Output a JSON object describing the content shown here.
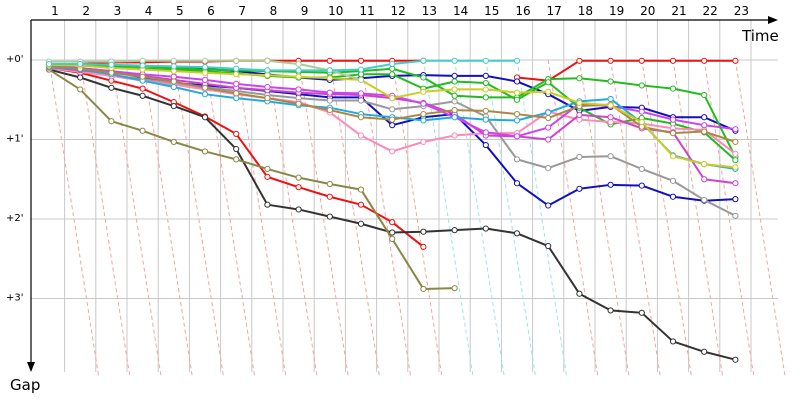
{
  "chart_data": {
    "type": "line",
    "xlabel": "Time",
    "ylabel": "Gap",
    "x_ticks": [
      "1",
      "2",
      "3",
      "4",
      "5",
      "6",
      "7",
      "8",
      "9",
      "10",
      "11",
      "12",
      "13",
      "14",
      "15",
      "16",
      "17",
      "18",
      "19",
      "20",
      "21",
      "22",
      "23"
    ],
    "y_ticks": [
      {
        "value": 0,
        "label": "+0'"
      },
      {
        "value": 1,
        "label": "+1'"
      },
      {
        "value": 2,
        "label": "+2'"
      },
      {
        "value": 3,
        "label": "+3'"
      }
    ],
    "grid": true,
    "colors": {
      "grid": "#c8c8c8",
      "axis": "#000000",
      "lap_guide_red": "#f4a3a3",
      "lap_guide_cyan": "#9fe4e4"
    },
    "series": [
      {
        "color": "#ee1111",
        "y": [
          0.1,
          0.16,
          0.26,
          0.36,
          0.53,
          0.71,
          0.93,
          1.47,
          1.6,
          1.72,
          1.82,
          2.04,
          2.35,
          null,
          null,
          null,
          null,
          null,
          null,
          null,
          null,
          null,
          null
        ]
      },
      {
        "color": "#ee1111",
        "y": [
          0.06,
          0.05,
          0.03,
          0.03,
          0.02,
          0.02,
          0.01,
          0.01,
          0.01,
          0.01,
          0.01,
          0.01,
          0.01,
          null,
          null,
          0.22,
          0.26,
          0.01,
          0.01,
          0.01,
          0.01,
          0.01,
          0.01
        ]
      },
      {
        "color": "#333333",
        "y": [
          0.12,
          0.22,
          0.35,
          0.45,
          0.58,
          0.72,
          1.12,
          1.82,
          1.88,
          1.97,
          2.06,
          2.17,
          2.16,
          2.14,
          2.12,
          2.18,
          2.34,
          2.94,
          3.15,
          3.18,
          3.54,
          3.67,
          3.77
        ]
      },
      {
        "color": "#888844",
        "y": [
          0.12,
          0.37,
          0.77,
          0.89,
          1.03,
          1.15,
          1.25,
          1.37,
          1.48,
          1.56,
          1.63,
          2.25,
          2.88,
          2.87,
          null,
          null,
          null,
          null,
          null,
          null,
          null,
          null,
          null
        ]
      },
      {
        "color": "#1111bb",
        "y": [
          0.08,
          0.11,
          0.14,
          0.22,
          0.29,
          0.32,
          0.35,
          0.39,
          0.43,
          0.47,
          0.47,
          0.82,
          0.72,
          0.68,
          1.07,
          1.55,
          1.83,
          1.62,
          1.57,
          1.58,
          1.72,
          1.77,
          1.75
        ]
      },
      {
        "color": "#1111bb",
        "y": [
          0.06,
          0.06,
          0.07,
          0.08,
          0.09,
          0.11,
          0.14,
          0.18,
          0.22,
          0.25,
          0.23,
          0.2,
          0.19,
          0.2,
          0.2,
          0.27,
          0.43,
          0.64,
          0.59,
          0.6,
          0.72,
          0.72,
          0.89
        ]
      },
      {
        "color": "#22bb22",
        "y": [
          0.06,
          0.06,
          0.07,
          0.08,
          0.1,
          0.12,
          0.13,
          0.14,
          0.15,
          0.16,
          0.14,
          0.11,
          0.22,
          0.45,
          0.47,
          0.47,
          0.24,
          0.23,
          0.27,
          0.32,
          0.36,
          0.44,
          1.22
        ]
      },
      {
        "color": "#22bb22",
        "y": [
          0.06,
          0.07,
          0.09,
          0.11,
          0.12,
          0.14,
          0.17,
          0.2,
          0.22,
          0.22,
          0.18,
          0.18,
          0.36,
          0.27,
          0.29,
          0.5,
          0.28,
          0.6,
          0.81,
          0.73,
          0.8,
          0.91,
          1.26
        ]
      },
      {
        "color": "#999999",
        "y": [
          0.09,
          0.14,
          0.19,
          0.24,
          0.29,
          0.34,
          0.39,
          0.44,
          0.48,
          0.51,
          0.51,
          0.62,
          0.58,
          0.52,
          0.71,
          1.25,
          1.36,
          1.22,
          1.21,
          1.37,
          1.52,
          1.76,
          1.96
        ]
      },
      {
        "color": "#ff88bb",
        "y": [
          0.1,
          0.15,
          0.2,
          0.26,
          0.31,
          0.37,
          0.43,
          0.48,
          0.53,
          0.66,
          0.95,
          1.15,
          1.03,
          0.95,
          0.92,
          0.92,
          0.65,
          0.75,
          0.78,
          0.8,
          0.86,
          0.88,
          1.18
        ]
      },
      {
        "color": "#cc44cc",
        "y": [
          0.09,
          0.13,
          0.16,
          0.2,
          0.25,
          0.3,
          0.35,
          0.38,
          0.41,
          0.43,
          0.44,
          0.48,
          0.54,
          0.68,
          0.95,
          0.96,
          1.0,
          0.69,
          0.72,
          0.86,
          0.91,
          1.5,
          1.55
        ]
      },
      {
        "color": "#cc44ee",
        "y": [
          0.07,
          0.1,
          0.14,
          0.18,
          0.21,
          0.25,
          0.3,
          0.34,
          0.37,
          0.41,
          0.42,
          0.45,
          0.55,
          0.72,
          0.91,
          0.96,
          0.85,
          0.55,
          0.58,
          0.65,
          0.75,
          0.82,
          0.87
        ]
      },
      {
        "color": "#22aadd",
        "y": [
          0.09,
          0.12,
          0.18,
          0.26,
          0.34,
          0.43,
          0.48,
          0.52,
          0.57,
          0.6,
          0.68,
          0.72,
          0.76,
          0.72,
          0.75,
          0.76,
          0.66,
          0.52,
          0.49,
          0.79,
          1.2,
          1.31,
          1.37
        ]
      },
      {
        "color": "#aa8844",
        "y": [
          0.08,
          0.11,
          0.16,
          0.21,
          0.27,
          0.35,
          0.42,
          0.48,
          0.55,
          0.63,
          0.72,
          0.75,
          0.68,
          0.63,
          0.64,
          0.68,
          0.73,
          0.58,
          0.56,
          0.84,
          0.92,
          0.9,
          1.03
        ]
      },
      {
        "color": "#cccc22",
        "y": [
          0.06,
          0.07,
          0.1,
          0.12,
          0.14,
          0.16,
          0.18,
          0.19,
          0.21,
          0.23,
          0.25,
          0.48,
          0.4,
          0.37,
          0.37,
          0.41,
          0.4,
          0.54,
          0.57,
          0.78,
          1.21,
          1.31,
          1.35
        ]
      },
      {
        "color": "#aacc99",
        "y": [
          0.02,
          0.02,
          0.02,
          0.01,
          0.01,
          0.01,
          0.01,
          0.01,
          0.05,
          0.13,
          0.25,
          null,
          null,
          null,
          null,
          null,
          null,
          null,
          null,
          null,
          null,
          null,
          null
        ]
      },
      {
        "color": "#44cccc",
        "y": [
          0.05,
          0.05,
          0.06,
          0.07,
          0.08,
          0.09,
          0.11,
          0.13,
          0.13,
          0.13,
          0.12,
          0.05,
          0.01,
          0.01,
          0.01,
          0.01,
          null,
          null,
          null,
          null,
          null,
          null,
          null
        ]
      }
    ],
    "lap_guides": [
      {
        "color": "#f4a3a3",
        "from": {
          "x": 1,
          "y": 0
        },
        "to": {
          "x": 2.6,
          "y": 4
        }
      },
      {
        "color": "#f4a3a3",
        "from": {
          "x": 2,
          "y": 0
        },
        "to": {
          "x": 3.6,
          "y": 4
        }
      },
      {
        "color": "#f4a3a3",
        "from": {
          "x": 3,
          "y": 0
        },
        "to": {
          "x": 4.6,
          "y": 4
        }
      },
      {
        "color": "#f4a3a3",
        "from": {
          "x": 4,
          "y": 0
        },
        "to": {
          "x": 5.6,
          "y": 4
        }
      },
      {
        "color": "#f4a3a3",
        "from": {
          "x": 5,
          "y": 0
        },
        "to": {
          "x": 6.6,
          "y": 4
        }
      },
      {
        "color": "#f4a3a3",
        "from": {
          "x": 6,
          "y": 0
        },
        "to": {
          "x": 7.6,
          "y": 4
        }
      },
      {
        "color": "#f4a3a3",
        "from": {
          "x": 7,
          "y": 0
        },
        "to": {
          "x": 8.6,
          "y": 4
        }
      },
      {
        "color": "#f4a3a3",
        "from": {
          "x": 8,
          "y": 0
        },
        "to": {
          "x": 9.6,
          "y": 4
        }
      },
      {
        "color": "#f4a3a3",
        "from": {
          "x": 9,
          "y": 0
        },
        "to": {
          "x": 10.6,
          "y": 4
        }
      },
      {
        "color": "#f4a3a3",
        "from": {
          "x": 10,
          "y": 0
        },
        "to": {
          "x": 11.6,
          "y": 4
        }
      },
      {
        "color": "#f4a3a3",
        "from": {
          "x": 11,
          "y": 0
        },
        "to": {
          "x": 12.6,
          "y": 4
        }
      },
      {
        "color": "#f4a3a3",
        "from": {
          "x": 12,
          "y": 0
        },
        "to": {
          "x": 13.6,
          "y": 4
        }
      },
      {
        "color": "#9fe4e4",
        "from": {
          "x": 13,
          "y": 0
        },
        "to": {
          "x": 14.6,
          "y": 4
        }
      },
      {
        "color": "#9fe4e4",
        "from": {
          "x": 14,
          "y": 0
        },
        "to": {
          "x": 15.6,
          "y": 4
        }
      },
      {
        "color": "#9fe4e4",
        "from": {
          "x": 15,
          "y": 0
        },
        "to": {
          "x": 16.6,
          "y": 4
        }
      },
      {
        "color": "#9fe4e4",
        "from": {
          "x": 16,
          "y": 0
        },
        "to": {
          "x": 17.6,
          "y": 4
        }
      },
      {
        "color": "#f4a3a3",
        "from": {
          "x": 17,
          "y": 0
        },
        "to": {
          "x": 18.6,
          "y": 4
        }
      },
      {
        "color": "#f4a3a3",
        "from": {
          "x": 18,
          "y": 0
        },
        "to": {
          "x": 19.6,
          "y": 4
        }
      },
      {
        "color": "#f4a3a3",
        "from": {
          "x": 19,
          "y": 0
        },
        "to": {
          "x": 20.6,
          "y": 4
        }
      },
      {
        "color": "#f4a3a3",
        "from": {
          "x": 20,
          "y": 0
        },
        "to": {
          "x": 21.6,
          "y": 4
        }
      },
      {
        "color": "#f4a3a3",
        "from": {
          "x": 21,
          "y": 0
        },
        "to": {
          "x": 22.6,
          "y": 4
        }
      },
      {
        "color": "#f4a3a3",
        "from": {
          "x": 22,
          "y": 0
        },
        "to": {
          "x": 23.6,
          "y": 4
        }
      },
      {
        "color": "#f4a3a3",
        "from": {
          "x": 23,
          "y": 0
        },
        "to": {
          "x": 24.6,
          "y": 4
        }
      }
    ]
  }
}
